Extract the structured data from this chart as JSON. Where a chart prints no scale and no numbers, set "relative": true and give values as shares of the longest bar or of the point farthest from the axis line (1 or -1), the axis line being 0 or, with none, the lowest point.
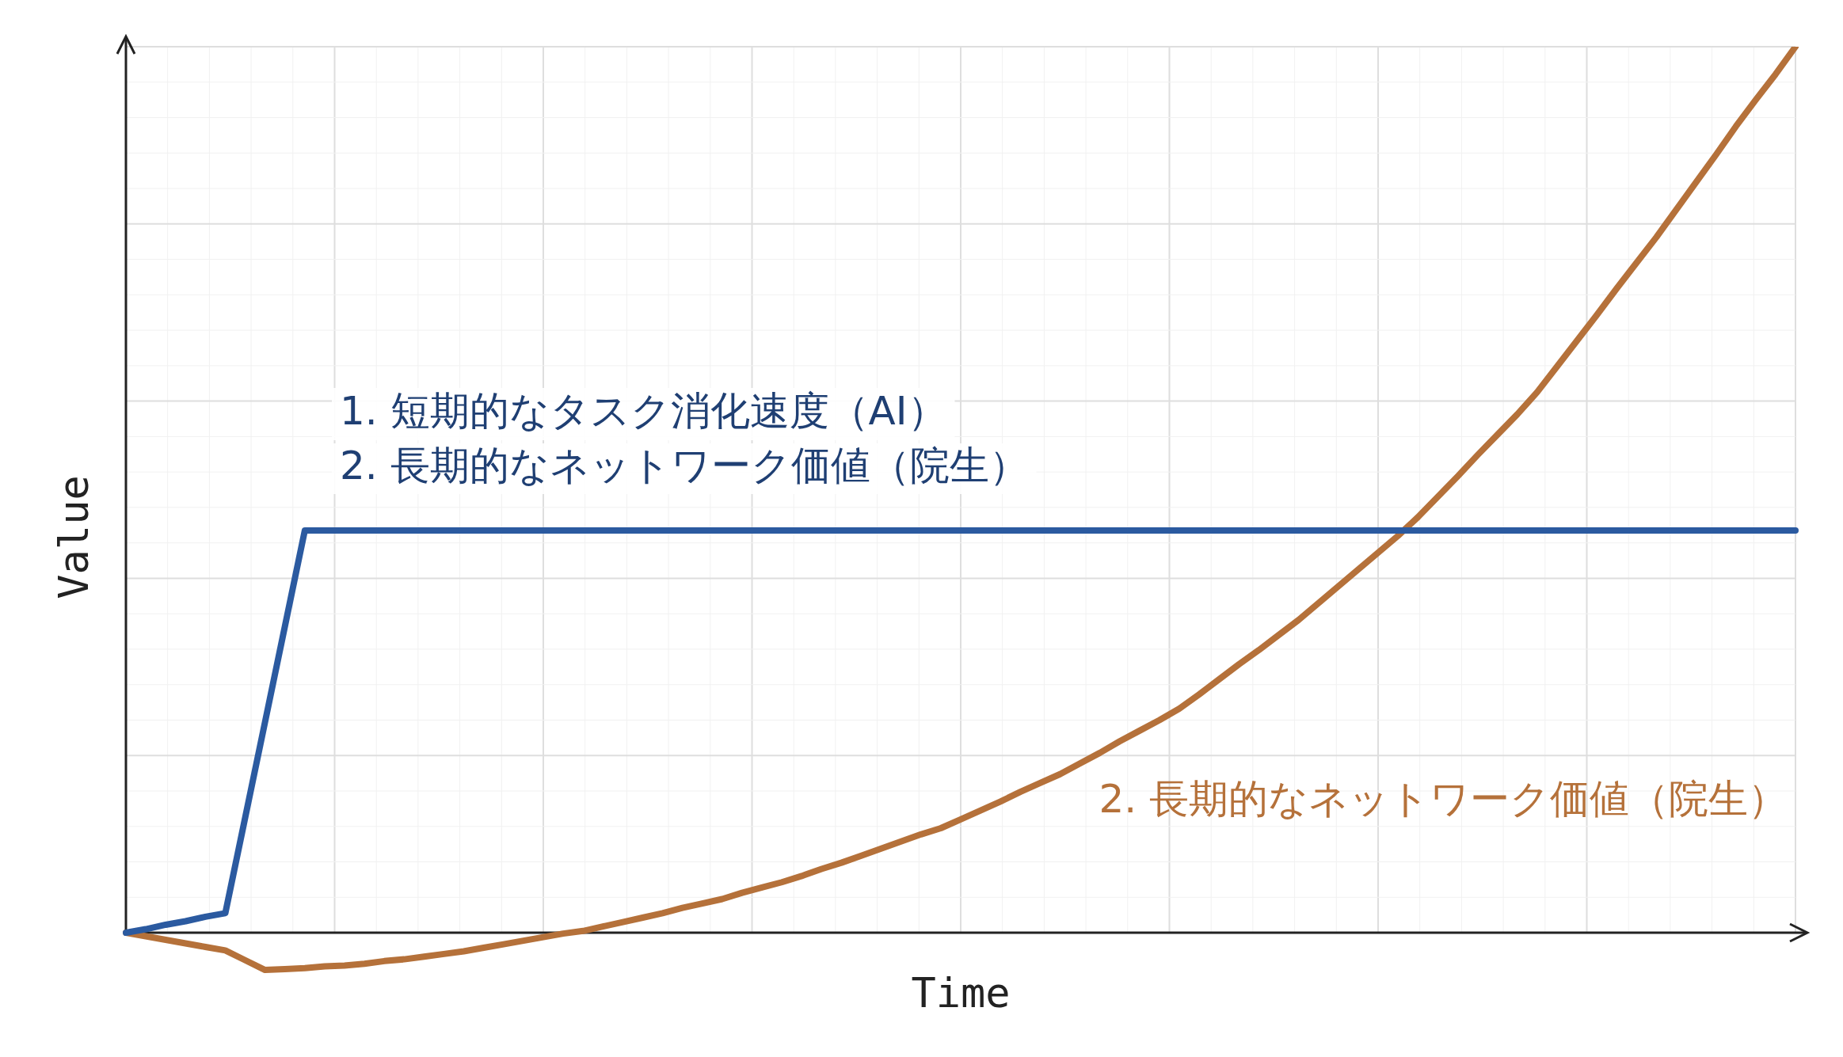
{
  "chart_data": {
    "type": "line",
    "relative": true,
    "xlabel": "Time",
    "ylabel": "Value",
    "grid": true,
    "legend": false,
    "marker": "none",
    "line_style": "solid",
    "categories": [
      null,
      null,
      null,
      null,
      null,
      null,
      null,
      null,
      null,
      null,
      null,
      null,
      null,
      null,
      null,
      null,
      null,
      null,
      null,
      null,
      null,
      null,
      null,
      null,
      null,
      null,
      null,
      null,
      null,
      null,
      null,
      null,
      null,
      null,
      null,
      null,
      null,
      null,
      null,
      null,
      null,
      null,
      null,
      null,
      null,
      null,
      null,
      null,
      null,
      null,
      null,
      null,
      null,
      null,
      null,
      null,
      null,
      null,
      null,
      null,
      null,
      null,
      null,
      null,
      null,
      null,
      null,
      null,
      null,
      null,
      null,
      null,
      null,
      null,
      null,
      null,
      null,
      null,
      null,
      null,
      null,
      null,
      null,
      null,
      null
    ],
    "series": [
      {
        "name": "1. 短期的なタスク消化速度（AI）",
        "color": "#2b5aa0",
        "values": [
          0,
          0.004,
          0.009,
          0.013,
          0.018,
          0.022,
          0.13,
          0.238,
          0.346,
          0.454,
          0.454,
          0.454,
          0.454,
          0.454,
          0.454,
          0.454,
          0.454,
          0.454,
          0.454,
          0.454,
          0.454,
          0.454,
          0.454,
          0.454,
          0.454,
          0.454,
          0.454,
          0.454,
          0.454,
          0.454,
          0.454,
          0.454,
          0.454,
          0.454,
          0.454,
          0.454,
          0.454,
          0.454,
          0.454,
          0.454,
          0.454,
          0.454,
          0.454,
          0.454,
          0.454,
          0.454,
          0.454,
          0.454,
          0.454,
          0.454,
          0.454,
          0.454,
          0.454,
          0.454,
          0.454,
          0.454,
          0.454,
          0.454,
          0.454,
          0.454,
          0.454,
          0.454,
          0.454,
          0.454,
          0.454,
          0.454,
          0.454,
          0.454,
          0.454,
          0.454,
          0.454,
          0.454,
          0.454,
          0.454,
          0.454,
          0.454,
          0.454,
          0.454,
          0.454,
          0.454,
          0.454,
          0.454,
          0.454,
          0.454,
          0.454
        ]
      },
      {
        "name": "2. 長期的なネットワーク価値（院生）",
        "color": "#b5713a",
        "values": [
          0,
          -0.004,
          -0.008,
          -0.012,
          -0.016,
          -0.02,
          -0.031,
          -0.042,
          -0.041,
          -0.04,
          -0.038,
          -0.037,
          -0.035,
          -0.032,
          -0.03,
          -0.027,
          -0.024,
          -0.021,
          -0.017,
          -0.013,
          -0.009,
          -0.005,
          -0.001,
          0.002,
          0.007,
          0.012,
          0.017,
          0.022,
          0.028,
          0.033,
          0.038,
          0.045,
          0.051,
          0.057,
          0.064,
          0.072,
          0.079,
          0.087,
          0.095,
          0.103,
          0.111,
          0.118,
          0.128,
          0.138,
          0.148,
          0.159,
          0.169,
          0.179,
          0.191,
          0.203,
          0.216,
          0.228,
          0.24,
          0.253,
          0.269,
          0.286,
          0.303,
          0.319,
          0.336,
          0.353,
          0.372,
          0.391,
          0.41,
          0.429,
          0.448,
          0.469,
          0.492,
          0.515,
          0.539,
          0.562,
          0.585,
          0.61,
          0.639,
          0.668,
          0.697,
          0.727,
          0.756,
          0.785,
          0.816,
          0.847,
          0.878,
          0.91,
          0.94,
          0.969,
          1
        ]
      }
    ],
    "annotations": [
      "2. 長期的なネットワーク価値（院生）"
    ]
  }
}
